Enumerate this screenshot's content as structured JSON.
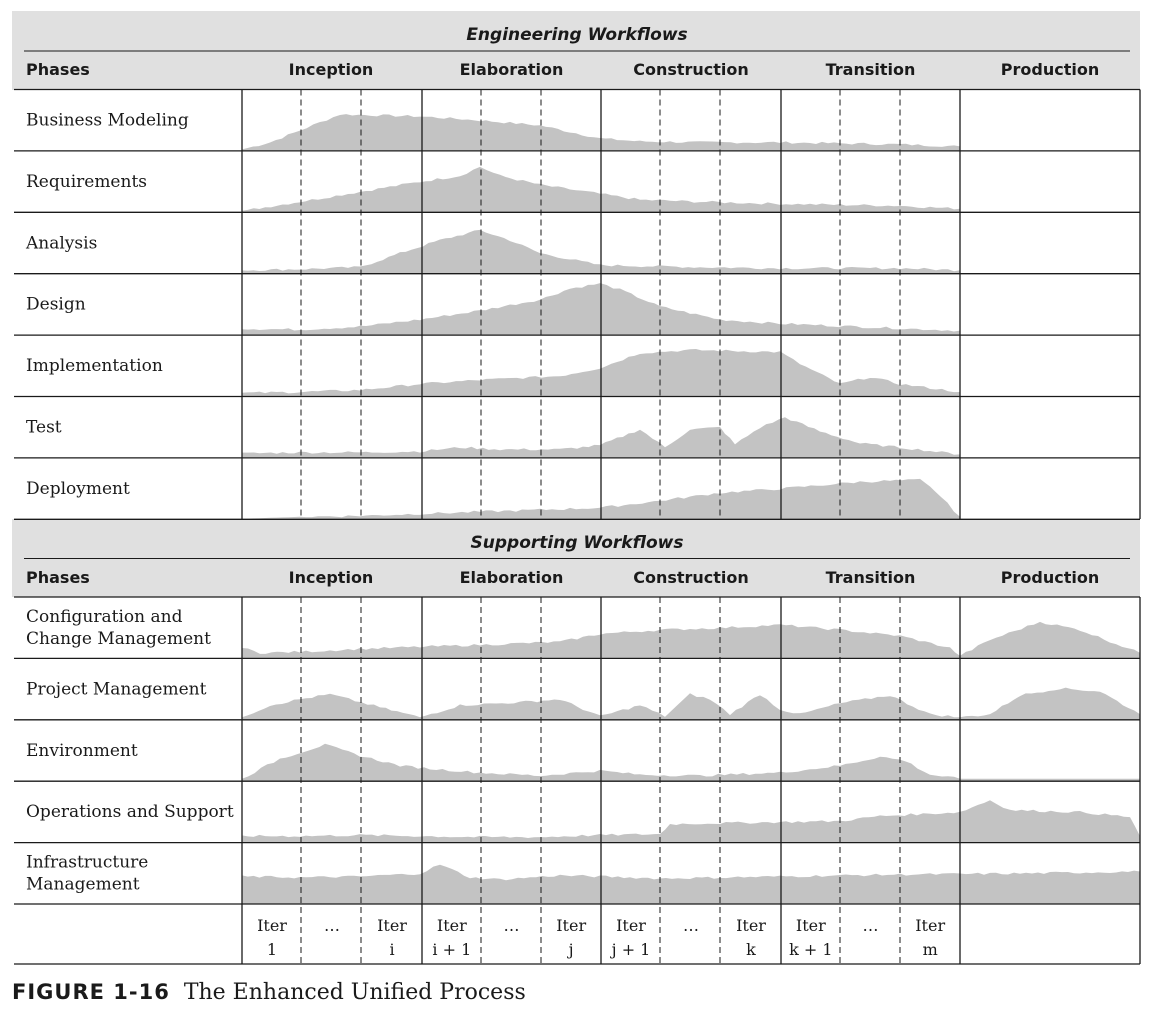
{
  "engineering_title": "Engineering Workflows",
  "supporting_title": "Supporting Workflows",
  "phases_label": "Phases",
  "phases": [
    "Inception",
    "Elaboration",
    "Construction",
    "Transition",
    "Production"
  ],
  "engineering_workflows": [
    [
      "Business Modeling"
    ],
    [
      "Requirements"
    ],
    [
      "Analysis"
    ],
    [
      "Design"
    ],
    [
      "Implementation"
    ],
    [
      "Test"
    ],
    [
      "Deployment"
    ]
  ],
  "supporting_workflows": [
    [
      "Configuration and",
      "Change Management"
    ],
    [
      "Project Management"
    ],
    [
      "Environment"
    ],
    [
      "Operations and Support"
    ],
    [
      "Infrastructure",
      "Management"
    ]
  ],
  "iterations": [
    [
      "Iter",
      "1"
    ],
    [
      "…",
      ""
    ],
    [
      "Iter",
      "i"
    ],
    [
      "Iter",
      "i + 1"
    ],
    [
      "…",
      ""
    ],
    [
      "Iter",
      "j"
    ],
    [
      "Iter",
      "j + 1"
    ],
    [
      "…",
      ""
    ],
    [
      "Iter",
      "k"
    ],
    [
      "Iter",
      "k + 1"
    ],
    [
      "…",
      ""
    ],
    [
      "Iter",
      "m"
    ]
  ],
  "caption": {
    "figure": "FIGURE 1-16",
    "title": "The Enhanced Unified Process"
  },
  "colors": {
    "header_band": "#e0e0e0",
    "effort_fill": "#c3c3c3",
    "grid_line": "#1a1a1a"
  }
}
